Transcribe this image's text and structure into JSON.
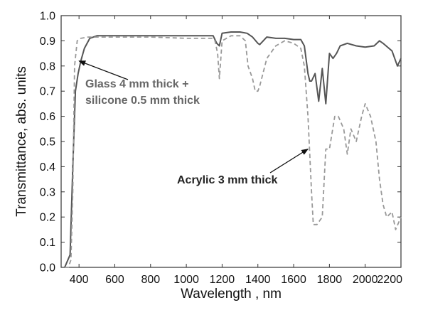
{
  "chart_data": {
    "type": "line",
    "title": "",
    "xlabel": "Wavelength , nm",
    "ylabel": "Transmittance, abs. units",
    "xlim": [
      300,
      2200
    ],
    "ylim": [
      0.0,
      1.0
    ],
    "xticks": [
      400,
      600,
      800,
      1000,
      1200,
      1400,
      1600,
      1800,
      2000,
      2200
    ],
    "xtick_labels": [
      "400",
      "600",
      "800",
      "1000",
      "1200",
      "1400",
      "1600",
      "1800",
      "2000",
      "2200"
    ],
    "yticks": [
      0.0,
      0.1,
      0.2,
      0.3,
      0.4,
      0.5,
      0.6,
      0.7,
      0.8,
      0.9,
      1.0
    ],
    "ytick_labels": [
      "0.0",
      "0.1",
      "0.2",
      "0.3",
      "0.4",
      "0.5",
      "0.6",
      "0.7",
      "0.8",
      "0.9",
      "1.0"
    ],
    "grid": false,
    "legend": "none",
    "series": [
      {
        "style": "solid",
        "color": "#555555",
        "x": [
          320,
          350,
          365,
          380,
          395,
          410,
          430,
          460,
          500,
          600,
          800,
          1000,
          1100,
          1150,
          1170,
          1185,
          1200,
          1250,
          1300,
          1340,
          1370,
          1400,
          1410,
          1450,
          1500,
          1550,
          1600,
          1640,
          1660,
          1680,
          1690,
          1700,
          1720,
          1740,
          1760,
          1780,
          1800,
          1820,
          1840,
          1860,
          1900,
          1950,
          2000,
          2050,
          2080,
          2100,
          2150,
          2180,
          2200
        ],
        "y": [
          0.0,
          0.05,
          0.4,
          0.7,
          0.77,
          0.82,
          0.87,
          0.91,
          0.92,
          0.92,
          0.92,
          0.92,
          0.92,
          0.92,
          0.89,
          0.88,
          0.93,
          0.935,
          0.935,
          0.93,
          0.915,
          0.89,
          0.885,
          0.915,
          0.91,
          0.91,
          0.905,
          0.905,
          0.88,
          0.77,
          0.74,
          0.74,
          0.77,
          0.66,
          0.79,
          0.65,
          0.85,
          0.83,
          0.85,
          0.88,
          0.89,
          0.88,
          0.875,
          0.88,
          0.9,
          0.89,
          0.86,
          0.8,
          0.83
        ]
      },
      {
        "style": "dashed",
        "color": "#999999",
        "x": [
          320,
          340,
          355,
          365,
          375,
          390,
          410,
          450,
          500,
          600,
          800,
          1000,
          1100,
          1150,
          1160,
          1175,
          1185,
          1200,
          1250,
          1300,
          1330,
          1345,
          1370,
          1385,
          1400,
          1410,
          1450,
          1500,
          1550,
          1600,
          1640,
          1660,
          1680,
          1700,
          1710,
          1730,
          1760,
          1780,
          1800,
          1830,
          1850,
          1880,
          1900,
          1920,
          1950,
          1980,
          2000,
          2030,
          2060,
          2080,
          2100,
          2120,
          2150,
          2170,
          2200
        ],
        "y": [
          0.0,
          0.0,
          0.03,
          0.3,
          0.8,
          0.9,
          0.91,
          0.915,
          0.915,
          0.915,
          0.915,
          0.91,
          0.91,
          0.91,
          0.9,
          0.85,
          0.75,
          0.9,
          0.92,
          0.92,
          0.9,
          0.8,
          0.75,
          0.7,
          0.7,
          0.72,
          0.83,
          0.88,
          0.9,
          0.89,
          0.87,
          0.8,
          0.6,
          0.3,
          0.17,
          0.17,
          0.2,
          0.47,
          0.47,
          0.6,
          0.6,
          0.55,
          0.45,
          0.55,
          0.5,
          0.6,
          0.65,
          0.6,
          0.5,
          0.35,
          0.25,
          0.2,
          0.22,
          0.15,
          0.2
        ]
      }
    ],
    "annotations": [
      {
        "lines": [
          "Glass 4 mm thick +",
          "silicone 0.5 mm thick"
        ],
        "color": "#666666",
        "arrow_to": [
          400,
          0.82
        ]
      },
      {
        "lines": [
          "Acrylic 3 mm thick"
        ],
        "color": "#222222",
        "arrow_to": [
          1680,
          0.47
        ]
      }
    ]
  }
}
